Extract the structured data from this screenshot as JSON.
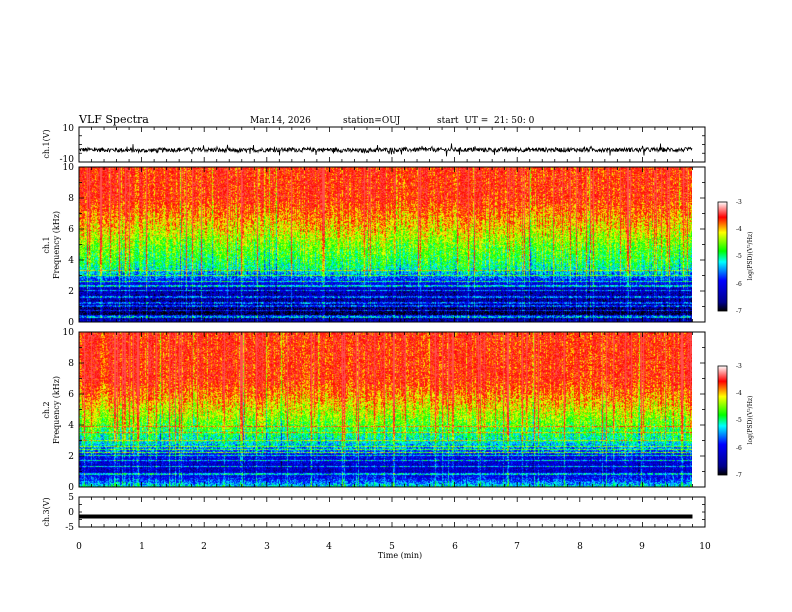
{
  "header": {
    "title": "VLF Spectra",
    "date": "Mar.14, 2026",
    "station": "station=OUJ",
    "start": "start  UT =  21: 50: 0"
  },
  "chart_data": [
    {
      "type": "line",
      "ylabel": "ch.1(V)",
      "ylim": [
        -10,
        10
      ],
      "ytick_labels": [
        "10",
        "-10"
      ],
      "series": [
        {
          "x": [
            0,
            0.5,
            1,
            1.5,
            2,
            2.5,
            3,
            3.5,
            4,
            4.5,
            5,
            5.5,
            6,
            6.5,
            7,
            7.5,
            8,
            8.5,
            9,
            9.5,
            9.8
          ],
          "values": [
            -3,
            -3,
            -3.5,
            -3,
            -3,
            -3.5,
            -3,
            -3,
            -3,
            -3.5,
            -3,
            -3,
            -3,
            -3,
            -3,
            -3,
            -3,
            -3,
            -3,
            -3,
            -3
          ],
          "noise_amplitude": 2.5
        }
      ]
    },
    {
      "type": "heatmap",
      "ylabel_line1": "ch.1",
      "ylabel_line2": "Frequency (kHz)",
      "ylim": [
        0,
        10
      ],
      "xlim": [
        0,
        9.85
      ],
      "ytick_labels": [
        "0",
        "2",
        "4",
        "6",
        "8",
        "10"
      ],
      "colorbar": {
        "label": "log(PSD)(V²/Hz)",
        "range": [
          -7,
          -3
        ],
        "ticks": [
          "-3",
          "-4",
          "-5",
          "-6",
          "-7"
        ]
      },
      "level_profile": [
        {
          "f": 0,
          "v": -6.3
        },
        {
          "f": 0.5,
          "v": -6.9
        },
        {
          "f": 1,
          "v": -6.6
        },
        {
          "f": 2,
          "v": -6.4
        },
        {
          "f": 2.5,
          "v": -6.0
        },
        {
          "f": 3,
          "v": -5.5
        },
        {
          "f": 3.5,
          "v": -5.0
        },
        {
          "f": 4,
          "v": -4.8
        },
        {
          "f": 5,
          "v": -4.5
        },
        {
          "f": 6,
          "v": -4.1
        },
        {
          "f": 7,
          "v": -3.8
        },
        {
          "f": 8,
          "v": -3.5
        },
        {
          "f": 9,
          "v": -3.5
        },
        {
          "f": 10,
          "v": -3.5
        }
      ],
      "line_frequencies_khz": [
        0.4,
        0.7,
        1.0,
        1.2,
        1.6,
        2.0,
        2.3,
        2.6,
        3.0,
        3.3
      ],
      "bright_frequency_khz": 0.3
    },
    {
      "type": "heatmap",
      "ylabel_line1": "ch.2",
      "ylabel_line2": "Frequency (kHz)",
      "ylim": [
        0,
        10
      ],
      "xlim": [
        0,
        9.85
      ],
      "ytick_labels": [
        "0",
        "2",
        "4",
        "6",
        "8",
        "10"
      ],
      "colorbar": {
        "label": "log(PSD)(V²/Hz)",
        "range": [
          -7,
          -3
        ],
        "ticks": [
          "-3",
          "-4",
          "-5",
          "-6",
          "-7"
        ]
      },
      "level_profile": [
        {
          "f": 0,
          "v": -5.2
        },
        {
          "f": 0.5,
          "v": -5.9
        },
        {
          "f": 1,
          "v": -6.3
        },
        {
          "f": 1.5,
          "v": -6.2
        },
        {
          "f": 2,
          "v": -6.0
        },
        {
          "f": 2.5,
          "v": -5.5
        },
        {
          "f": 3,
          "v": -5.1
        },
        {
          "f": 3.5,
          "v": -4.9
        },
        {
          "f": 4,
          "v": -4.6
        },
        {
          "f": 5,
          "v": -4.2
        },
        {
          "f": 6,
          "v": -3.8
        },
        {
          "f": 7,
          "v": -3.5
        },
        {
          "f": 8,
          "v": -3.5
        },
        {
          "f": 9,
          "v": -3.5
        },
        {
          "f": 10,
          "v": -3.5
        }
      ],
      "line_frequencies_khz": [
        0.8,
        1.3,
        1.7,
        2.0,
        2.4,
        2.6,
        3.0,
        3.5,
        3.9
      ],
      "bright_frequency_khz": 2.2
    },
    {
      "type": "line",
      "ylabel": "ch.3(V)",
      "ylim": [
        -5,
        5
      ],
      "ytick_labels": [
        "5",
        "0",
        "-5"
      ],
      "series": [
        {
          "x": [
            0,
            9.8
          ],
          "values": [
            -1.5,
            -1.5
          ]
        }
      ]
    }
  ],
  "xaxis": {
    "label": "Time (min)",
    "range": [
      0,
      10
    ],
    "tick_labels": [
      "0",
      "1",
      "2",
      "3",
      "4",
      "5",
      "6",
      "7",
      "8",
      "9",
      "10"
    ]
  }
}
